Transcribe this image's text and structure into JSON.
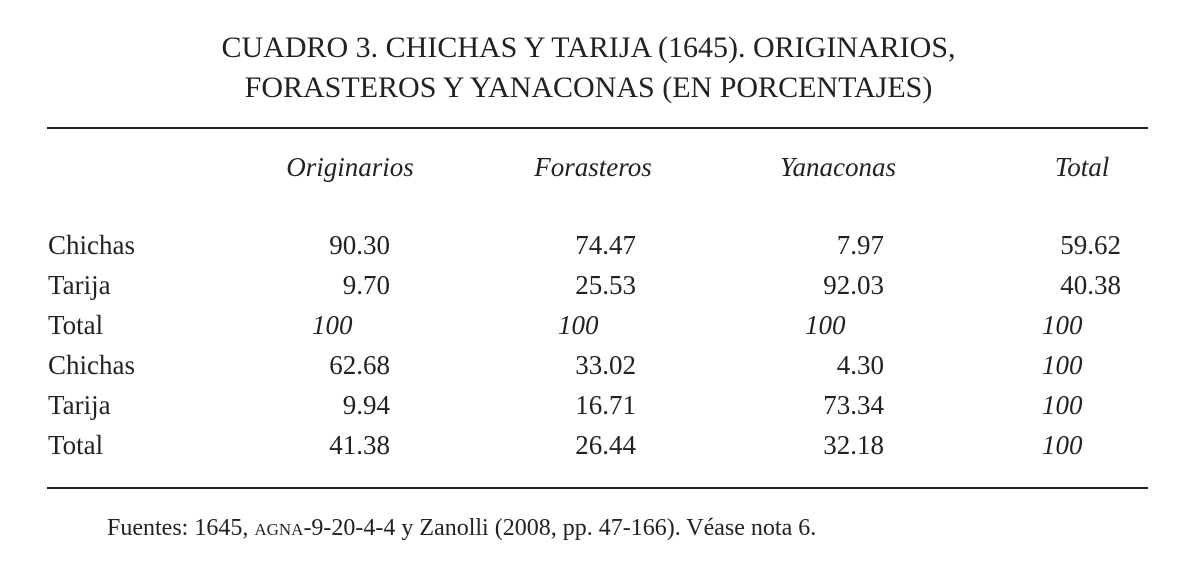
{
  "title": [
    "CUADRO 3. CHICHAS Y TARIJA (1645). ORIGINARIOS,",
    "FORASTEROS Y YANACONAS (EN PORCENTAJES)"
  ],
  "table": {
    "headers": [
      "Originarios",
      "Forasteros",
      "Yanaconas",
      "Total"
    ],
    "rows": [
      [
        "Chichas",
        "90.30",
        "74.47",
        "7.97",
        "59.62"
      ],
      [
        "Tarija",
        "9.70",
        "25.53",
        "92.03",
        "40.38"
      ],
      [
        "Total",
        "100",
        "100",
        "100",
        "100"
      ],
      [
        "Chichas",
        "62.68",
        "33.02",
        "4.30",
        "100"
      ],
      [
        "Tarija",
        "9.94",
        "16.71",
        "73.34",
        "100"
      ],
      [
        "Total",
        "41.38",
        "26.44",
        "32.18",
        "100"
      ]
    ]
  },
  "source": [
    "Fuentes: 1645, ",
    "AGNA",
    "-9-20-4-4 y Zanolli (2008, pp. 47-166). Véase nota 6."
  ]
}
